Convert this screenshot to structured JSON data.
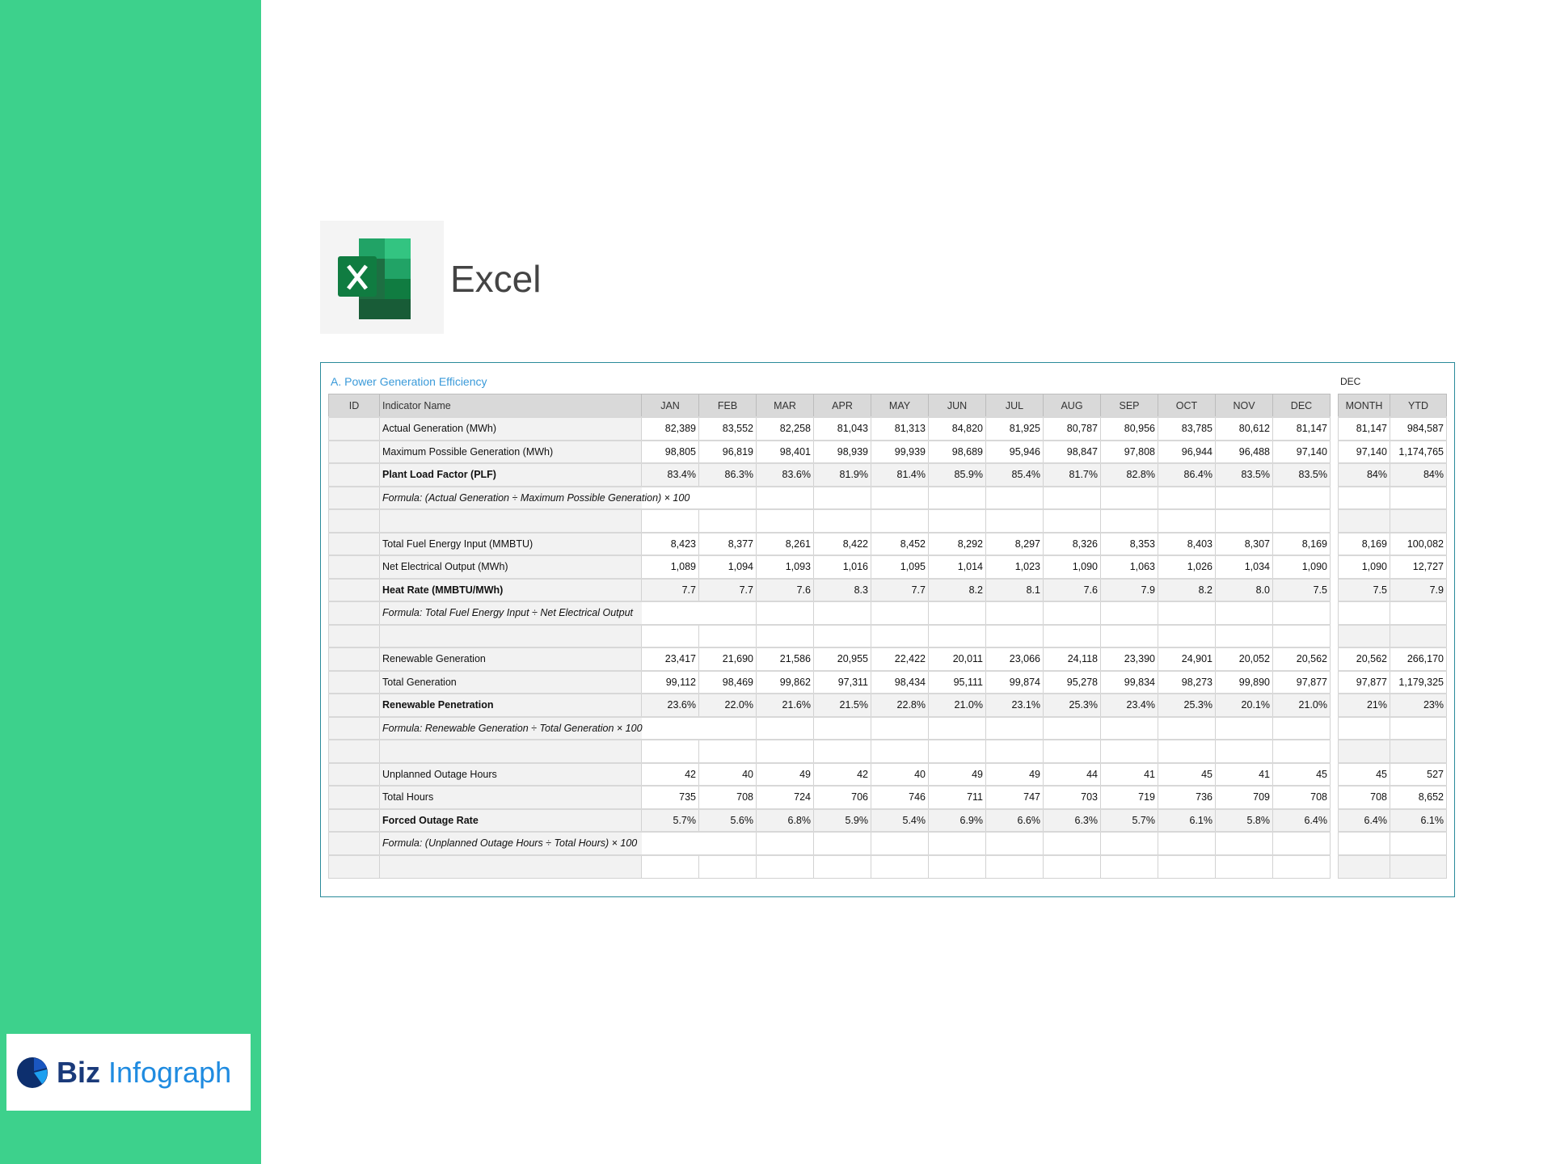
{
  "brand": {
    "name_part1": "Biz",
    "name_part2": "Infograph"
  },
  "app": {
    "name": "Excel"
  },
  "colors": {
    "sidebar": "#3dd18c",
    "title": "#3a9ad9",
    "excel_green": "#1e7e45"
  },
  "table": {
    "title": "A. Power Generation Efficiency",
    "summary_period": "DEC",
    "headers": {
      "id": "ID",
      "indicator": "Indicator Name",
      "months": [
        "JAN",
        "FEB",
        "MAR",
        "APR",
        "MAY",
        "JUN",
        "JUL",
        "AUG",
        "SEP",
        "OCT",
        "NOV",
        "DEC"
      ],
      "month": "MONTH",
      "ytd": "YTD"
    },
    "rows": [
      {
        "type": "data",
        "name": "Actual Generation (MWh)",
        "values": [
          "82,389",
          "83,552",
          "82,258",
          "81,043",
          "81,313",
          "84,820",
          "81,925",
          "80,787",
          "80,956",
          "83,785",
          "80,612",
          "81,147"
        ],
        "month": "81,147",
        "ytd": "984,587"
      },
      {
        "type": "data",
        "name": "Maximum Possible Generation (MWh)",
        "values": [
          "98,805",
          "96,819",
          "98,401",
          "98,939",
          "99,939",
          "98,689",
          "95,946",
          "98,847",
          "97,808",
          "96,944",
          "96,488",
          "97,140"
        ],
        "month": "97,140",
        "ytd": "1,174,765"
      },
      {
        "type": "bold",
        "name": "Plant Load Factor (PLF)",
        "values": [
          "83.4%",
          "86.3%",
          "83.6%",
          "81.9%",
          "81.4%",
          "85.9%",
          "85.4%",
          "81.7%",
          "82.8%",
          "86.4%",
          "83.5%",
          "83.5%"
        ],
        "month": "84%",
        "ytd": "84%"
      },
      {
        "type": "formula",
        "name": "Formula: (Actual Generation ÷ Maximum Possible Generation) × 100"
      },
      {
        "type": "blank"
      },
      {
        "type": "data",
        "name": "Total Fuel Energy Input (MMBTU)",
        "values": [
          "8,423",
          "8,377",
          "8,261",
          "8,422",
          "8,452",
          "8,292",
          "8,297",
          "8,326",
          "8,353",
          "8,403",
          "8,307",
          "8,169"
        ],
        "month": "8,169",
        "ytd": "100,082"
      },
      {
        "type": "data",
        "name": "Net Electrical Output (MWh)",
        "values": [
          "1,089",
          "1,094",
          "1,093",
          "1,016",
          "1,095",
          "1,014",
          "1,023",
          "1,090",
          "1,063",
          "1,026",
          "1,034",
          "1,090"
        ],
        "month": "1,090",
        "ytd": "12,727"
      },
      {
        "type": "bold",
        "name": "Heat Rate (MMBTU/MWh)",
        "values": [
          "7.7",
          "7.7",
          "7.6",
          "8.3",
          "7.7",
          "8.2",
          "8.1",
          "7.6",
          "7.9",
          "8.2",
          "8.0",
          "7.5"
        ],
        "month": "7.5",
        "ytd": "7.9"
      },
      {
        "type": "formula",
        "name": "Formula: Total Fuel Energy Input ÷ Net Electrical Output"
      },
      {
        "type": "blank"
      },
      {
        "type": "data",
        "name": "Renewable Generation",
        "values": [
          "23,417",
          "21,690",
          "21,586",
          "20,955",
          "22,422",
          "20,011",
          "23,066",
          "24,118",
          "23,390",
          "24,901",
          "20,052",
          "20,562"
        ],
        "month": "20,562",
        "ytd": "266,170"
      },
      {
        "type": "data",
        "name": "Total Generation",
        "values": [
          "99,112",
          "98,469",
          "99,862",
          "97,311",
          "98,434",
          "95,111",
          "99,874",
          "95,278",
          "99,834",
          "98,273",
          "99,890",
          "97,877"
        ],
        "month": "97,877",
        "ytd": "1,179,325"
      },
      {
        "type": "bold",
        "name": "Renewable Penetration",
        "values": [
          "23.6%",
          "22.0%",
          "21.6%",
          "21.5%",
          "22.8%",
          "21.0%",
          "23.1%",
          "25.3%",
          "23.4%",
          "25.3%",
          "20.1%",
          "21.0%"
        ],
        "month": "21%",
        "ytd": "23%"
      },
      {
        "type": "formula",
        "name": "Formula: Renewable Generation ÷ Total Generation × 100"
      },
      {
        "type": "blank"
      },
      {
        "type": "data",
        "name": "Unplanned Outage Hours",
        "values": [
          "42",
          "40",
          "49",
          "42",
          "40",
          "49",
          "49",
          "44",
          "41",
          "45",
          "41",
          "45"
        ],
        "month": "45",
        "ytd": "527"
      },
      {
        "type": "data",
        "name": "Total Hours",
        "values": [
          "735",
          "708",
          "724",
          "706",
          "746",
          "711",
          "747",
          "703",
          "719",
          "736",
          "709",
          "708"
        ],
        "month": "708",
        "ytd": "8,652"
      },
      {
        "type": "bold",
        "name": "Forced Outage Rate",
        "values": [
          "5.7%",
          "5.6%",
          "6.8%",
          "5.9%",
          "5.4%",
          "6.9%",
          "6.6%",
          "6.3%",
          "5.7%",
          "6.1%",
          "5.8%",
          "6.4%"
        ],
        "month": "6.4%",
        "ytd": "6.1%"
      },
      {
        "type": "formula",
        "name": "Formula: (Unplanned Outage Hours ÷ Total Hours) × 100"
      },
      {
        "type": "blank"
      }
    ]
  }
}
